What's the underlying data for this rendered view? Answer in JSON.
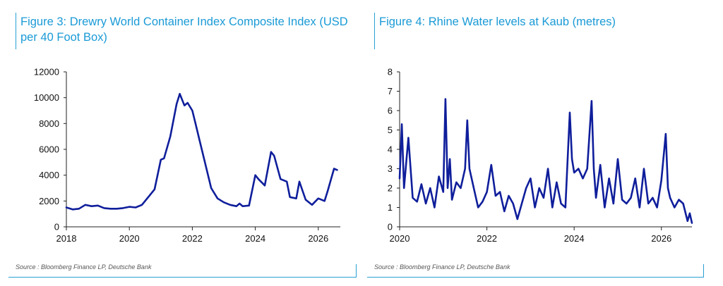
{
  "charts": [
    {
      "title": "Figure 3: Drewry World Container Index Composite Index (USD per 40 Foot Box)",
      "source": "Source : Bloomberg Finance LP, Deutsche Bank",
      "line_color": "#0f1e9b"
    },
    {
      "title": "Figure 4: Rhine Water levels at Kaub (metres)",
      "source": "Source : Bloomberg Finance LP, Deutsche Bank",
      "line_color": "#0f1e9b"
    }
  ],
  "chart_data": [
    {
      "type": "line",
      "title": "Figure 3: Drewry World Container Index Composite Index (USD per 40 Foot Box)",
      "xlabel": "",
      "ylabel": "",
      "xlim": [
        2018,
        2026.7
      ],
      "ylim": [
        0,
        12000
      ],
      "xticks": [
        2018,
        2020,
        2022,
        2024,
        2026
      ],
      "yticks": [
        0,
        2000,
        4000,
        6000,
        8000,
        10000,
        12000
      ],
      "grid": false,
      "series": [
        {
          "x": [
            2018.0,
            2018.2,
            2018.4,
            2018.6,
            2018.8,
            2019.0,
            2019.2,
            2019.4,
            2019.6,
            2019.8,
            2020.0,
            2020.2,
            2020.4,
            2020.6,
            2020.8,
            2021.0,
            2021.1,
            2021.3,
            2021.5,
            2021.6,
            2021.75,
            2021.85,
            2022.0,
            2022.1,
            2022.2,
            2022.4,
            2022.6,
            2022.8,
            2023.0,
            2023.2,
            2023.4,
            2023.5,
            2023.6,
            2023.8,
            2024.0,
            2024.1,
            2024.3,
            2024.5,
            2024.6,
            2024.8,
            2025.0,
            2025.1,
            2025.3,
            2025.4,
            2025.6,
            2025.8,
            2026.0,
            2026.2,
            2026.3,
            2026.5,
            2026.6
          ],
          "y": [
            1500,
            1350,
            1400,
            1700,
            1600,
            1650,
            1450,
            1400,
            1400,
            1450,
            1550,
            1500,
            1700,
            2300,
            2900,
            5200,
            5300,
            7000,
            9500,
            10300,
            9400,
            9600,
            9000,
            8000,
            7000,
            5000,
            3000,
            2200,
            1900,
            1700,
            1600,
            1800,
            1600,
            1650,
            4000,
            3700,
            3200,
            5800,
            5500,
            3700,
            3500,
            2300,
            2200,
            3500,
            2100,
            1700,
            2200,
            2000,
            2800,
            4500,
            4400
          ]
        }
      ]
    },
    {
      "type": "line",
      "title": "Figure 4: Rhine Water levels at Kaub (metres)",
      "xlabel": "",
      "ylabel": "",
      "xlim": [
        2020,
        2026.7
      ],
      "ylim": [
        0,
        8
      ],
      "xticks": [
        2020,
        2022,
        2024,
        2026
      ],
      "yticks": [
        0,
        1,
        2,
        3,
        4,
        5,
        6,
        7,
        8
      ],
      "grid": false,
      "series": [
        {
          "x": [
            2020.0,
            2020.05,
            2020.1,
            2020.2,
            2020.3,
            2020.4,
            2020.5,
            2020.6,
            2020.7,
            2020.8,
            2020.9,
            2021.0,
            2021.05,
            2021.1,
            2021.15,
            2021.2,
            2021.3,
            2021.4,
            2021.5,
            2021.55,
            2021.6,
            2021.7,
            2021.8,
            2021.9,
            2022.0,
            2022.1,
            2022.2,
            2022.3,
            2022.4,
            2022.5,
            2022.6,
            2022.7,
            2022.8,
            2022.9,
            2023.0,
            2023.1,
            2023.2,
            2023.3,
            2023.4,
            2023.5,
            2023.6,
            2023.7,
            2023.8,
            2023.9,
            2023.95,
            2024.0,
            2024.1,
            2024.2,
            2024.3,
            2024.4,
            2024.45,
            2024.5,
            2024.6,
            2024.7,
            2024.8,
            2024.9,
            2025.0,
            2025.1,
            2025.2,
            2025.3,
            2025.4,
            2025.5,
            2025.6,
            2025.7,
            2025.8,
            2025.9,
            2026.0,
            2026.1,
            2026.15,
            2026.2,
            2026.3,
            2026.4,
            2026.5,
            2026.6,
            2026.65,
            2026.7
          ],
          "y": [
            2.5,
            5.3,
            2.0,
            4.6,
            1.5,
            1.3,
            2.2,
            1.2,
            2.0,
            1.0,
            2.6,
            1.8,
            6.6,
            2.0,
            3.5,
            1.4,
            2.3,
            2.0,
            3.0,
            5.5,
            3.0,
            2.0,
            1.0,
            1.3,
            1.8,
            3.2,
            1.6,
            1.8,
            0.8,
            1.6,
            1.2,
            0.4,
            1.2,
            2.0,
            2.5,
            1.0,
            2.0,
            1.5,
            3.0,
            1.0,
            2.3,
            1.2,
            1.0,
            5.9,
            3.5,
            2.8,
            3.0,
            2.5,
            3.0,
            6.5,
            3.0,
            1.5,
            3.2,
            1.0,
            2.5,
            1.2,
            3.5,
            1.4,
            1.2,
            1.5,
            2.5,
            1.0,
            3.0,
            1.2,
            1.5,
            1.0,
            2.4,
            4.8,
            2.0,
            1.5,
            1.0,
            1.4,
            1.2,
            0.3,
            0.7,
            0.2
          ]
        }
      ]
    }
  ]
}
